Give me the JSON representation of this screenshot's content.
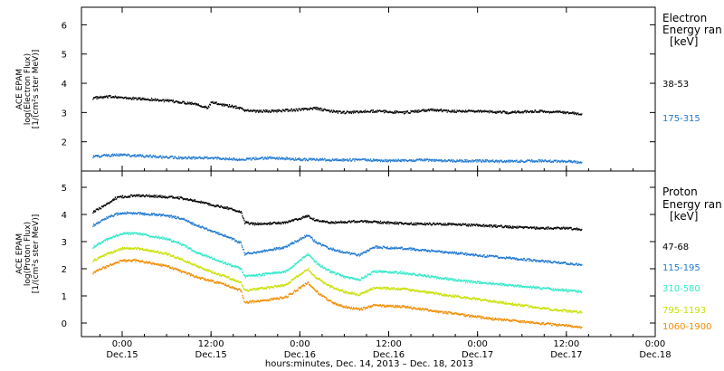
{
  "chart_data": [
    {
      "type": "scatter",
      "panel": "electron",
      "ylabel": [
        "ACE EPAM",
        "log(Electron Flux)",
        "[1/(cm²s ster MeV)]"
      ],
      "ylim": [
        1.0,
        6.6
      ],
      "yticks": [
        "2",
        "3",
        "4",
        "5",
        "6"
      ],
      "yticks_values": [
        2,
        3,
        4,
        5,
        6
      ],
      "legend_title": [
        "Electron",
        "Energy ran",
        "[keV]"
      ],
      "series": [
        {
          "name": "38-53",
          "color": "#000000",
          "points": [
            [
              -4,
              3.5
            ],
            [
              -1,
              3.55
            ],
            [
              0,
              3.5
            ],
            [
              4,
              3.45
            ],
            [
              8,
              3.35
            ],
            [
              10,
              3.3
            ],
            [
              11,
              3.2
            ],
            [
              11.5,
              3.15
            ],
            [
              12,
              3.35
            ],
            [
              13,
              3.3
            ],
            [
              15,
              3.2
            ],
            [
              16,
              3.15
            ],
            [
              16.5,
              3.08
            ],
            [
              18,
              3.05
            ],
            [
              20,
              3.05
            ],
            [
              24,
              3.1
            ],
            [
              26,
              3.15
            ],
            [
              28,
              3.05
            ],
            [
              30,
              3.0
            ],
            [
              34,
              3.05
            ],
            [
              38,
              3.0
            ],
            [
              40,
              3.05
            ],
            [
              42,
              3.1
            ],
            [
              44,
              3.05
            ],
            [
              48,
              3.05
            ],
            [
              52,
              3.0
            ],
            [
              56,
              3.05
            ],
            [
              60,
              3.0
            ],
            [
              62,
              2.95
            ]
          ]
        },
        {
          "name": "175-315",
          "color": "#1f78d1",
          "points": [
            [
              -4,
              1.5
            ],
            [
              -1,
              1.55
            ],
            [
              0,
              1.55
            ],
            [
              4,
              1.5
            ],
            [
              8,
              1.45
            ],
            [
              12,
              1.45
            ],
            [
              16,
              1.4
            ],
            [
              20,
              1.45
            ],
            [
              24,
              1.4
            ],
            [
              28,
              1.38
            ],
            [
              32,
              1.38
            ],
            [
              36,
              1.35
            ],
            [
              40,
              1.38
            ],
            [
              44,
              1.35
            ],
            [
              48,
              1.35
            ],
            [
              52,
              1.33
            ],
            [
              56,
              1.35
            ],
            [
              60,
              1.33
            ],
            [
              62,
              1.3
            ]
          ]
        }
      ]
    },
    {
      "type": "scatter",
      "panel": "proton",
      "ylabel": [
        "ACE EPAM",
        "log(Proton Flux)",
        "[1/(cm²s ster MeV)]"
      ],
      "ylim": [
        -0.5,
        5.6
      ],
      "yticks": [
        "0",
        "1",
        "2",
        "3",
        "4",
        "5"
      ],
      "yticks_values": [
        0,
        1,
        2,
        3,
        4,
        5
      ],
      "legend_title": [
        "Proton",
        "Energy ran",
        "[keV]"
      ],
      "series": [
        {
          "name": "47-68",
          "color": "#000000",
          "points": [
            [
              -4,
              4.1
            ],
            [
              -2,
              4.4
            ],
            [
              -1,
              4.6
            ],
            [
              0,
              4.65
            ],
            [
              2,
              4.7
            ],
            [
              6,
              4.65
            ],
            [
              8,
              4.6
            ],
            [
              10,
              4.5
            ],
            [
              12,
              4.35
            ],
            [
              14,
              4.25
            ],
            [
              16,
              4.1
            ],
            [
              16.5,
              3.7
            ],
            [
              18,
              3.65
            ],
            [
              22,
              3.7
            ],
            [
              24,
              3.85
            ],
            [
              25,
              3.95
            ],
            [
              26,
              3.8
            ],
            [
              28,
              3.7
            ],
            [
              32,
              3.75
            ],
            [
              36,
              3.7
            ],
            [
              40,
              3.65
            ],
            [
              44,
              3.65
            ],
            [
              48,
              3.6
            ],
            [
              52,
              3.55
            ],
            [
              56,
              3.5
            ],
            [
              60,
              3.5
            ],
            [
              62,
              3.45
            ]
          ]
        },
        {
          "name": "115-195",
          "color": "#1f78d1",
          "points": [
            [
              -4,
              3.6
            ],
            [
              -2,
              3.9
            ],
            [
              -1,
              4.0
            ],
            [
              0,
              4.05
            ],
            [
              2,
              4.05
            ],
            [
              6,
              3.95
            ],
            [
              8,
              3.85
            ],
            [
              10,
              3.6
            ],
            [
              12,
              3.4
            ],
            [
              14,
              3.2
            ],
            [
              16,
              2.95
            ],
            [
              16.5,
              2.55
            ],
            [
              18,
              2.6
            ],
            [
              22,
              2.8
            ],
            [
              24,
              3.1
            ],
            [
              25,
              3.25
            ],
            [
              26,
              3.0
            ],
            [
              28,
              2.75
            ],
            [
              30,
              2.6
            ],
            [
              32,
              2.5
            ],
            [
              34,
              2.8
            ],
            [
              38,
              2.75
            ],
            [
              42,
              2.65
            ],
            [
              46,
              2.55
            ],
            [
              50,
              2.45
            ],
            [
              54,
              2.35
            ],
            [
              58,
              2.25
            ],
            [
              62,
              2.15
            ]
          ]
        },
        {
          "name": "310-580",
          "color": "#2ee8c8",
          "points": [
            [
              -4,
              2.8
            ],
            [
              -2,
              3.1
            ],
            [
              -1,
              3.2
            ],
            [
              0,
              3.3
            ],
            [
              2,
              3.3
            ],
            [
              6,
              3.1
            ],
            [
              8,
              2.9
            ],
            [
              10,
              2.6
            ],
            [
              12,
              2.4
            ],
            [
              14,
              2.2
            ],
            [
              16,
              2.0
            ],
            [
              16.5,
              1.7
            ],
            [
              18,
              1.75
            ],
            [
              22,
              1.9
            ],
            [
              24,
              2.3
            ],
            [
              25,
              2.55
            ],
            [
              26,
              2.25
            ],
            [
              28,
              1.9
            ],
            [
              30,
              1.7
            ],
            [
              32,
              1.6
            ],
            [
              34,
              1.9
            ],
            [
              38,
              1.85
            ],
            [
              42,
              1.7
            ],
            [
              46,
              1.55
            ],
            [
              50,
              1.45
            ],
            [
              54,
              1.35
            ],
            [
              58,
              1.25
            ],
            [
              62,
              1.15
            ]
          ]
        },
        {
          "name": "795-1193",
          "color": "#c8e000",
          "points": [
            [
              -4,
              2.3
            ],
            [
              -2,
              2.55
            ],
            [
              -1,
              2.65
            ],
            [
              0,
              2.75
            ],
            [
              2,
              2.75
            ],
            [
              6,
              2.55
            ],
            [
              8,
              2.35
            ],
            [
              10,
              2.1
            ],
            [
              12,
              1.9
            ],
            [
              14,
              1.7
            ],
            [
              16,
              1.5
            ],
            [
              16.5,
              1.2
            ],
            [
              18,
              1.25
            ],
            [
              22,
              1.4
            ],
            [
              24,
              1.8
            ],
            [
              25,
              2.0
            ],
            [
              26,
              1.7
            ],
            [
              28,
              1.35
            ],
            [
              30,
              1.15
            ],
            [
              32,
              1.05
            ],
            [
              34,
              1.3
            ],
            [
              38,
              1.25
            ],
            [
              42,
              1.1
            ],
            [
              46,
              0.95
            ],
            [
              50,
              0.8
            ],
            [
              54,
              0.65
            ],
            [
              58,
              0.5
            ],
            [
              62,
              0.4
            ]
          ]
        },
        {
          "name": "1060-1900",
          "color": "#f08c00",
          "points": [
            [
              -4,
              1.85
            ],
            [
              -2,
              2.1
            ],
            [
              -1,
              2.2
            ],
            [
              0,
              2.3
            ],
            [
              2,
              2.3
            ],
            [
              6,
              2.1
            ],
            [
              8,
              1.9
            ],
            [
              10,
              1.7
            ],
            [
              12,
              1.55
            ],
            [
              14,
              1.4
            ],
            [
              16,
              1.2
            ],
            [
              16.5,
              0.75
            ],
            [
              18,
              0.8
            ],
            [
              22,
              0.95
            ],
            [
              24,
              1.3
            ],
            [
              25,
              1.5
            ],
            [
              26,
              1.2
            ],
            [
              28,
              0.8
            ],
            [
              30,
              0.6
            ],
            [
              32,
              0.5
            ],
            [
              34,
              0.65
            ],
            [
              38,
              0.6
            ],
            [
              42,
              0.45
            ],
            [
              46,
              0.3
            ],
            [
              50,
              0.15
            ],
            [
              54,
              0.05
            ],
            [
              58,
              -0.05
            ],
            [
              62,
              -0.15
            ]
          ]
        }
      ]
    }
  ],
  "xaxis": {
    "range_hours": [
      -5.5,
      72
    ],
    "ticks": [
      {
        "hours": 0,
        "time": "0:00",
        "date": "Dec.15"
      },
      {
        "hours": 12,
        "time": "12:00",
        "date": "Dec.15"
      },
      {
        "hours": 24,
        "time": "0:00",
        "date": "Dec.16"
      },
      {
        "hours": 36,
        "time": "12:00",
        "date": "Dec.16"
      },
      {
        "hours": 48,
        "time": "0:00",
        "date": "Dec.17"
      },
      {
        "hours": 60,
        "time": "12:00",
        "date": "Dec.17"
      },
      {
        "hours": 72,
        "time": "0:00",
        "date": "Dec.18"
      }
    ],
    "label": "hours:minutes, Dec. 14, 2013 – Dec. 18, 2013"
  }
}
